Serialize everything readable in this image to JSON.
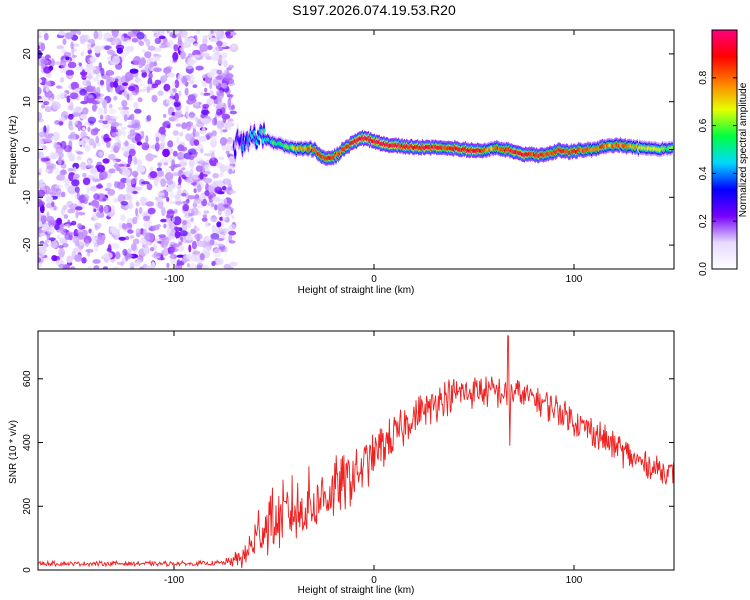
{
  "title": "S197.2026.074.19.53.R20",
  "chart_data": [
    {
      "type": "heatmap",
      "name": "spectrogram",
      "xlabel": "Height of straight line (km)",
      "ylabel": "Frequency (Hz)",
      "xlim": [
        -168,
        150
      ],
      "ylim": [
        -25,
        25
      ],
      "xticks": [
        -100,
        0,
        100
      ],
      "yticks": [
        -20,
        -10,
        0,
        10,
        20
      ],
      "noise_region_x": [
        -168,
        -70
      ],
      "ridge": {
        "x": [
          -70,
          -66,
          -62,
          -58,
          -54,
          -50,
          -46,
          -42,
          -38,
          -34,
          -30,
          -26,
          -22,
          -18,
          -14,
          -10,
          -6,
          -2,
          2,
          6,
          10,
          14,
          18,
          22,
          26,
          30,
          34,
          38,
          42,
          46,
          50,
          54,
          58,
          62,
          66,
          70,
          74,
          78,
          82,
          86,
          90,
          94,
          98,
          102,
          106,
          110,
          114,
          118,
          122,
          126,
          130,
          134,
          138,
          142,
          146,
          149
        ],
        "y": [
          0.5,
          2.0,
          4.0,
          3.0,
          2.0,
          1.5,
          1.0,
          0.5,
          0.0,
          0.3,
          0.0,
          -1.5,
          -2.0,
          -1.0,
          0.5,
          1.5,
          2.5,
          2.0,
          1.5,
          1.0,
          0.8,
          0.8,
          0.6,
          0.5,
          0.5,
          0.5,
          0.3,
          0.3,
          0.2,
          0.0,
          -0.2,
          -0.3,
          0.0,
          0.3,
          0.0,
          -0.5,
          -1.0,
          -1.0,
          -1.3,
          -1.0,
          -0.5,
          -0.3,
          -0.5,
          -0.2,
          0.0,
          0.0,
          0.5,
          0.8,
          0.8,
          0.8,
          0.5,
          0.3,
          0.2,
          0.0,
          0.2,
          0.3
        ],
        "amplitude": [
          0.3,
          0.35,
          0.4,
          0.45,
          0.5,
          0.55,
          0.55,
          0.6,
          0.7,
          0.75,
          0.8,
          0.85,
          0.85,
          0.8,
          0.85,
          0.9,
          0.95,
          0.95,
          0.95,
          0.95,
          0.95,
          0.9,
          0.9,
          0.9,
          0.9,
          0.85,
          0.85,
          0.85,
          0.9,
          0.9,
          0.9,
          0.85,
          0.7,
          0.8,
          0.85,
          0.9,
          0.9,
          0.85,
          0.85,
          0.8,
          0.85,
          0.85,
          0.85,
          0.85,
          0.8,
          0.8,
          0.8,
          0.75,
          0.8,
          0.8,
          0.75,
          0.7,
          0.7,
          0.7,
          0.6,
          0.6
        ]
      },
      "colorbar": {
        "label": "Normalized spectral amplitude",
        "range": [
          0,
          1
        ],
        "ticks": [
          "0.0",
          "0.2",
          "0.4",
          "0.6",
          "0.8"
        ],
        "colors": [
          "#ffffff",
          "#e6d9ff",
          "#7700ff",
          "#0000ff",
          "#00d9ff",
          "#00ff40",
          "#e6ff00",
          "#ff8000",
          "#ff0000",
          "#ff007f"
        ]
      }
    },
    {
      "type": "line",
      "name": "snr",
      "xlabel": "Height of straight line (km)",
      "ylabel": "SNR (10 * v/v)",
      "xlim": [
        -168,
        150
      ],
      "ylim": [
        0,
        750
      ],
      "xticks": [
        -100,
        0,
        100
      ],
      "yticks": [
        0,
        200,
        400,
        600
      ],
      "color": "#ef2020",
      "envelope": {
        "x": [
          -168,
          -150,
          -130,
          -110,
          -90,
          -75,
          -65,
          -60,
          -55,
          -50,
          -45,
          -40,
          -35,
          -30,
          -25,
          -20,
          -15,
          -10,
          -5,
          0,
          5,
          10,
          15,
          20,
          25,
          30,
          35,
          40,
          45,
          50,
          55,
          60,
          65,
          70,
          75,
          80,
          85,
          90,
          95,
          100,
          105,
          110,
          115,
          120,
          125,
          130,
          135,
          140,
          145,
          150
        ],
        "mean": [
          20,
          20,
          20,
          20,
          20,
          22,
          40,
          90,
          140,
          160,
          170,
          180,
          200,
          210,
          230,
          250,
          270,
          300,
          330,
          360,
          390,
          420,
          450,
          480,
          500,
          520,
          540,
          550,
          555,
          560,
          560,
          560,
          555,
          555,
          550,
          540,
          525,
          510,
          490,
          470,
          450,
          430,
          410,
          390,
          370,
          350,
          335,
          320,
          310,
          300
        ],
        "spread": [
          8,
          8,
          8,
          8,
          8,
          10,
          40,
          90,
          120,
          120,
          120,
          130,
          130,
          120,
          110,
          110,
          100,
          100,
          90,
          80,
          80,
          75,
          70,
          70,
          65,
          65,
          65,
          60,
          60,
          55,
          55,
          55,
          55,
          55,
          55,
          55,
          55,
          55,
          55,
          55,
          55,
          55,
          55,
          55,
          55,
          50,
          50,
          45,
          45,
          45
        ]
      },
      "spikes": [
        {
          "x": 67,
          "y": 735
        },
        {
          "x": 68,
          "y": 390
        }
      ]
    }
  ]
}
